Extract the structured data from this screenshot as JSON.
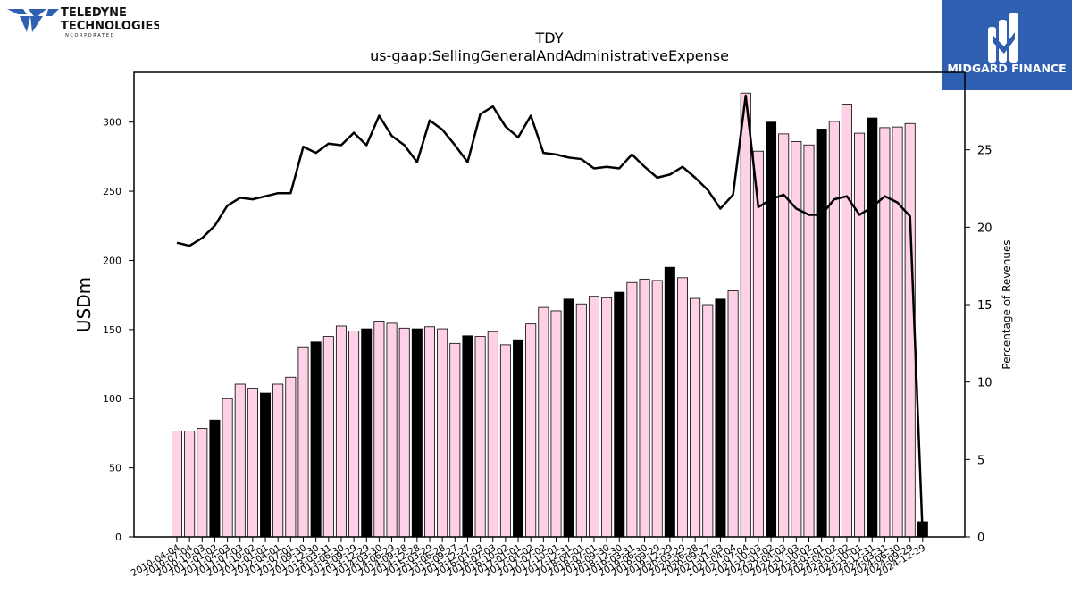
{
  "brand_left": {
    "name_line1": "TELEDYNE",
    "name_line2": "TECHNOLOGIES",
    "name_line3": "I N C O R P O R A T E D"
  },
  "brand_right": {
    "name": "MIDGARD FINANCE"
  },
  "chart_data": {
    "type": "bar",
    "title": "TDY",
    "subtitle": "us-gaap:SellingGeneralAndAdministrativeExpense",
    "ylabel": "USDm",
    "y2label": "Percentage of Revenues",
    "ylim": [
      0,
      336
    ],
    "y2lim": [
      0,
      30
    ],
    "yticks": [
      0,
      50,
      100,
      150,
      200,
      250,
      300
    ],
    "y2ticks": [
      0,
      5,
      10,
      15,
      20,
      25
    ],
    "colors": {
      "bar_default": "#ffd1e6",
      "bar_highlight": "#000000",
      "line": "#000000"
    },
    "categories": [
      "2010-04-04",
      "2010-07-04",
      "2010-10-03",
      "2011-01-02",
      "2011-04-03",
      "2011-07-03",
      "2011-10-02",
      "2012-01-01",
      "2012-04-01",
      "2012-07-01",
      "2012-09-30",
      "2012-12-30",
      "2013-03-31",
      "2013-06-30",
      "2013-09-29",
      "2013-12-29",
      "2014-03-30",
      "2014-06-29",
      "2014-09-28",
      "2014-12-28",
      "2015-03-29",
      "2015-06-28",
      "2015-09-27",
      "2015-12-27",
      "2016-04-03",
      "2016-07-03",
      "2016-10-02",
      "2017-01-01",
      "2017-04-02",
      "2017-07-02",
      "2017-10-01",
      "2017-12-31",
      "2018-04-01",
      "2018-07-01",
      "2018-09-30",
      "2018-12-30",
      "2019-03-31",
      "2019-06-30",
      "2019-09-29",
      "2019-12-29",
      "2020-03-29",
      "2020-06-28",
      "2020-09-27",
      "2021-01-03",
      "2021-04-04",
      "2021-07-04",
      "2021-10-03",
      "2022-01-02",
      "2022-04-03",
      "2022-07-03",
      "2022-10-02",
      "2023-01-01",
      "2023-04-02",
      "2023-07-02",
      "2023-10-01",
      "2023-12-31",
      "2024-03-31",
      "2024-06-30",
      "2024-09-29",
      "2024-12-29"
    ],
    "x_tick_labels": [
      "2010-04-04",
      "2010-07-04",
      "2010-10-03",
      "2011-01-02",
      "2011-04-03",
      "2011-07-03",
      "2011-10-02",
      "2012-01-01",
      "2012-04-01",
      "2012-07-01",
      "2012-09-30",
      "2012-12-30",
      "2013-03-31",
      "2013-06-30",
      "2013-09-29",
      "2013-12-29",
      "2014-03-30",
      "2014-06-29",
      "2014-09-28",
      "2014-12-28",
      "2015-03-29",
      "2015-06-28",
      "2015-09-27",
      "2015-12-27",
      "2016-04-03",
      "2016-07-03",
      "2016-10-02",
      "2017-01-01",
      "2017-04-02",
      "2017-07-02",
      "2017-10-01",
      "2017-12-31",
      "2018-04-01",
      "2018-07-01",
      "2018-09-30",
      "2018-12-30",
      "2019-03-31",
      "2019-06-30",
      "2019-09-29",
      "2019-12-29",
      "2020-03-29",
      "2020-06-28",
      "2020-09-27",
      "2021-01-03",
      "2021-04-04",
      "2021-07-04",
      "2021-10-03",
      "2022-01-02",
      "2022-04-03",
      "2022-07-03",
      "2022-10-02",
      "2023-01-01",
      "2023-04-02",
      "2023-07-02",
      "2023-10-01",
      "2023-12-31",
      "2024-03-31",
      "2024-06-30",
      "2024-09-29",
      "2024-12-29"
    ],
    "series": [
      {
        "axis": "left",
        "kind": "bar",
        "values": [
          76.5,
          76.5,
          78.5,
          84.5,
          100,
          110.5,
          107.5,
          104,
          110.5,
          115.5,
          137.5,
          141,
          145,
          152.5,
          149,
          150.5,
          156,
          154.5,
          151,
          150.5,
          152,
          150.5,
          140,
          145.5,
          145,
          148.5,
          139,
          142,
          154,
          166,
          163.5,
          172,
          168.5,
          174,
          173,
          177,
          184,
          186.5,
          185.5,
          195,
          187.5,
          172.5,
          168,
          172,
          178,
          321,
          279,
          300,
          291.5,
          286,
          283.5,
          295,
          300.5,
          313,
          292,
          303,
          296,
          296.5,
          299,
          11
        ],
        "highlight": [
          false,
          false,
          false,
          true,
          false,
          false,
          false,
          true,
          false,
          false,
          false,
          true,
          false,
          false,
          false,
          true,
          false,
          false,
          false,
          true,
          false,
          false,
          false,
          true,
          false,
          false,
          false,
          true,
          false,
          false,
          false,
          true,
          false,
          false,
          false,
          true,
          false,
          false,
          false,
          true,
          false,
          false,
          false,
          true,
          false,
          false,
          false,
          true,
          false,
          false,
          false,
          true,
          false,
          false,
          false,
          true,
          false,
          false,
          false,
          true
        ]
      },
      {
        "axis": "right",
        "kind": "line",
        "values": [
          19,
          18.8,
          19.3,
          20.1,
          21.4,
          21.9,
          21.8,
          22,
          22.2,
          22.2,
          25.2,
          24.8,
          25.4,
          25.3,
          26.1,
          25.3,
          27.2,
          25.9,
          25.3,
          24.2,
          26.9,
          26.3,
          25.3,
          24.2,
          27.3,
          27.8,
          26.5,
          25.8,
          27.2,
          24.8,
          24.7,
          24.5,
          24.4,
          23.8,
          23.9,
          23.8,
          24.7,
          23.9,
          23.2,
          23.4,
          23.9,
          23.2,
          22.4,
          21.2,
          22.1,
          28.5,
          21.3,
          21.8,
          22.1,
          21.2,
          20.8,
          20.8,
          21.8,
          22,
          20.8,
          21.3,
          22,
          21.6,
          20.7,
          0
        ]
      }
    ]
  }
}
